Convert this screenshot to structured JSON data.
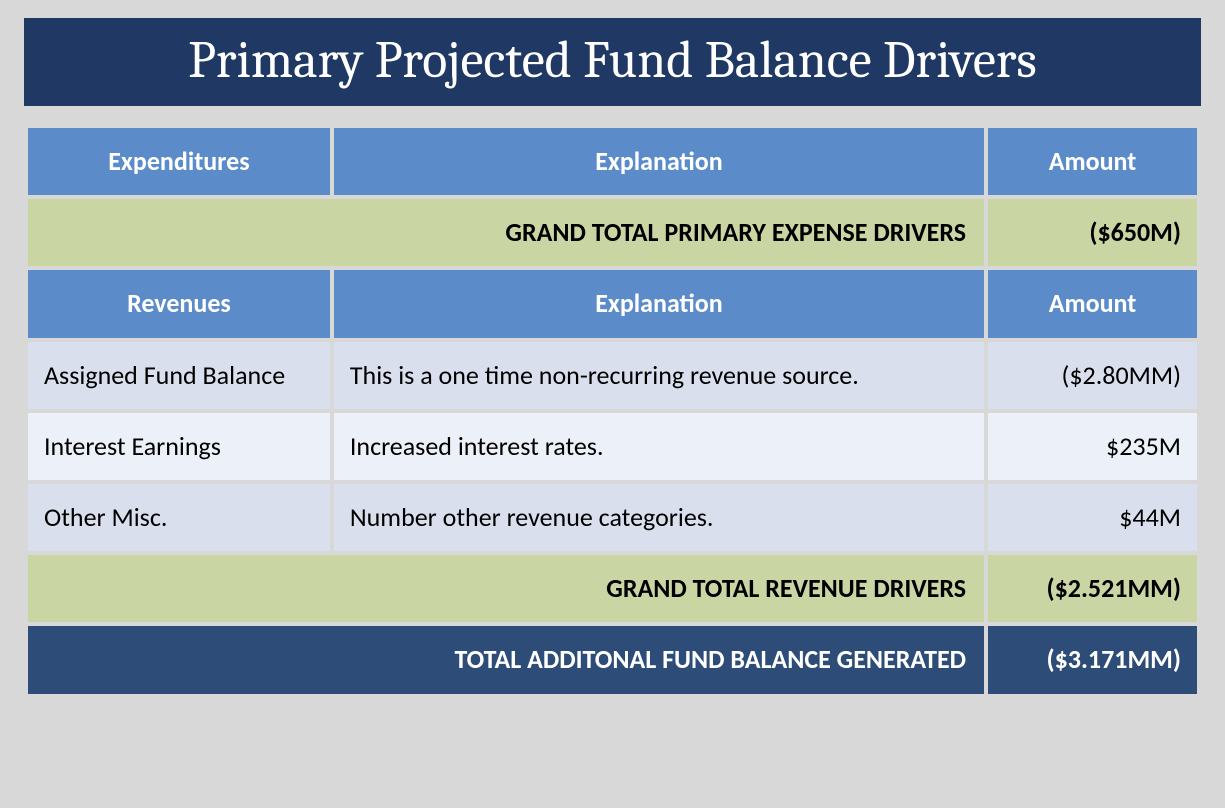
{
  "title": "Primary Projected Fund Balance Drivers",
  "colors": {
    "page_bg": "#d8d8d8",
    "title_bg": "#203864",
    "header_bg": "#5b8bc8",
    "row_bg": "#dadfed",
    "row_alt_bg": "#ecf0f8",
    "total_green_bg": "#cad5a4",
    "total_blue_bg": "#2d4d78",
    "title_text": "#ffffff",
    "header_text": "#ffffff",
    "body_text": "#000000"
  },
  "headers1": {
    "col1": "Expenditures",
    "col2": "Explanation",
    "col3": "Amount"
  },
  "expense_total": {
    "label": "GRAND TOTAL PRIMARY EXPENSE DRIVERS",
    "amount": "($650M)"
  },
  "headers2": {
    "col1": "Revenues",
    "col2": "Explanation",
    "col3": "Amount"
  },
  "revenues": [
    {
      "name": "Assigned Fund Balance",
      "explanation": "This is a one time non-recurring revenue source.",
      "amount": "($2.80MM)"
    },
    {
      "name": "Interest Earnings",
      "explanation": "Increased interest rates.",
      "amount": "$235M"
    },
    {
      "name": "Other Misc.",
      "explanation": "Number other revenue categories.",
      "amount": "$44M"
    }
  ],
  "revenue_total": {
    "label": "GRAND TOTAL REVENUE DRIVERS",
    "amount": "($2.521MM)"
  },
  "grand_total": {
    "label": "TOTAL ADDITONAL FUND BALANCE GENERATED",
    "amount": "($3.171MM)"
  }
}
